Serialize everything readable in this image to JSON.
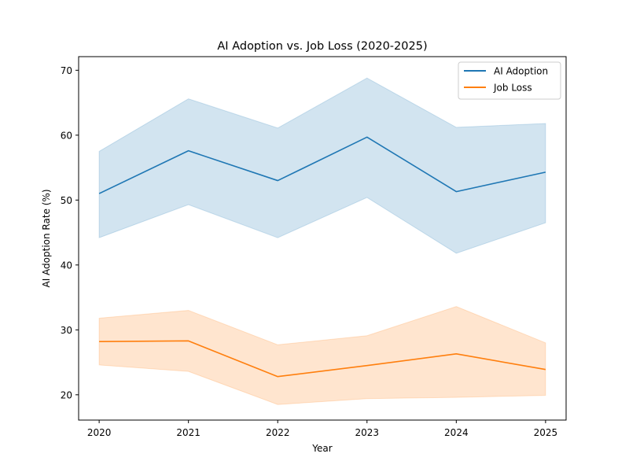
{
  "chart_data": {
    "type": "line",
    "title": "AI Adoption vs. Job Loss (2020-2025)",
    "xlabel": "Year",
    "ylabel": "AI Adoption Rate (%)",
    "x": [
      2020,
      2021,
      2022,
      2023,
      2024,
      2025
    ],
    "x_tick_labels": [
      "2020",
      "2021",
      "2022",
      "2023",
      "2024",
      "2025"
    ],
    "y_ticks": [
      20,
      30,
      40,
      50,
      60,
      70
    ],
    "y_tick_labels": [
      "20",
      "30",
      "40",
      "50",
      "60",
      "70"
    ],
    "xlim": [
      2019.77,
      2025.23
    ],
    "ylim": [
      16.1,
      72.1
    ],
    "grid": false,
    "legend_position": "top-right",
    "series": [
      {
        "name": "AI Adoption",
        "color": "#1f77b4",
        "values": [
          51.0,
          57.6,
          53.0,
          59.7,
          51.3,
          54.3
        ],
        "lower": [
          44.2,
          49.3,
          44.2,
          50.4,
          41.8,
          46.5
        ],
        "upper": [
          57.5,
          65.6,
          61.1,
          68.8,
          61.2,
          61.8
        ]
      },
      {
        "name": "Job Loss",
        "color": "#ff7f0e",
        "values": [
          28.2,
          28.3,
          22.8,
          24.5,
          26.3,
          23.9
        ],
        "lower": [
          24.6,
          23.6,
          18.5,
          19.4,
          19.6,
          19.9
        ],
        "upper": [
          31.8,
          33.0,
          27.7,
          29.1,
          33.6,
          28.0
        ]
      }
    ]
  }
}
